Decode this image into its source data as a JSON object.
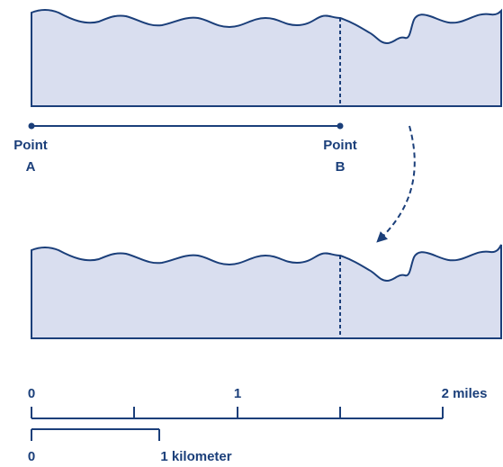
{
  "labels": {
    "point_a_word": "Point",
    "point_a_letter": "A",
    "point_b_word": "Point",
    "point_b_letter": "B"
  },
  "scale": {
    "miles_ticks": [
      "0",
      "1",
      "2 miles"
    ],
    "km_ticks": [
      "0",
      "1 kilometer"
    ]
  },
  "colors": {
    "ink": "#1b3f7a",
    "panel_fill": "#d9deef"
  }
}
